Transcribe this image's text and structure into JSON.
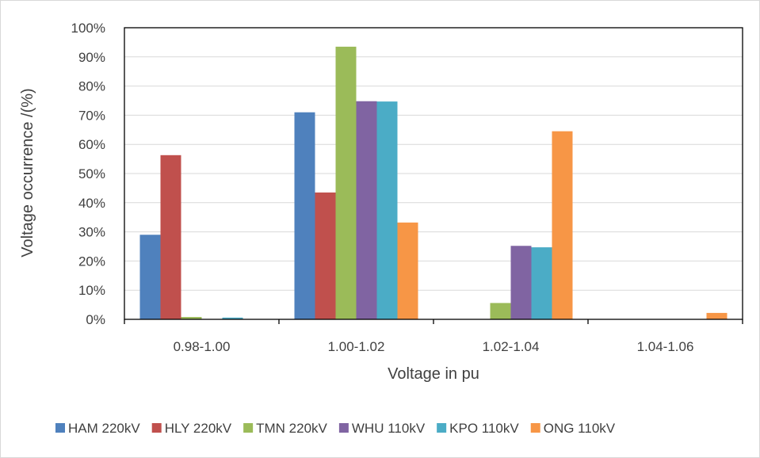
{
  "chart_data": {
    "type": "bar",
    "title": "",
    "xlabel": "Voltage in pu",
    "ylabel": "Voltage occurrence /(%)",
    "ylim": [
      0,
      100
    ],
    "yticks": [
      "0%",
      "10%",
      "20%",
      "30%",
      "40%",
      "50%",
      "60%",
      "70%",
      "80%",
      "90%",
      "100%"
    ],
    "grid": true,
    "legend_position": "bottom",
    "categories": [
      "0.98-1.00",
      "1.00-1.02",
      "1.02-1.04",
      "1.04-1.06"
    ],
    "series": [
      {
        "name": "HAM 220kV",
        "color": "#4f81bd",
        "values": [
          29,
          71,
          0,
          0
        ]
      },
      {
        "name": "HLY 220kV",
        "color": "#c0504d",
        "values": [
          56.3,
          43.5,
          0,
          0
        ]
      },
      {
        "name": "TMN 220kV",
        "color": "#9bbb59",
        "values": [
          0.8,
          93.5,
          5.6,
          0
        ]
      },
      {
        "name": "WHU 110kV",
        "color": "#8064a2",
        "values": [
          0,
          74.8,
          25.2,
          0
        ]
      },
      {
        "name": "KPO 110kV",
        "color": "#4bacc6",
        "values": [
          0.6,
          74.7,
          24.7,
          0
        ]
      },
      {
        "name": "ONG 110kV",
        "color": "#f79646",
        "values": [
          0,
          33.2,
          64.5,
          2.2
        ]
      }
    ]
  }
}
